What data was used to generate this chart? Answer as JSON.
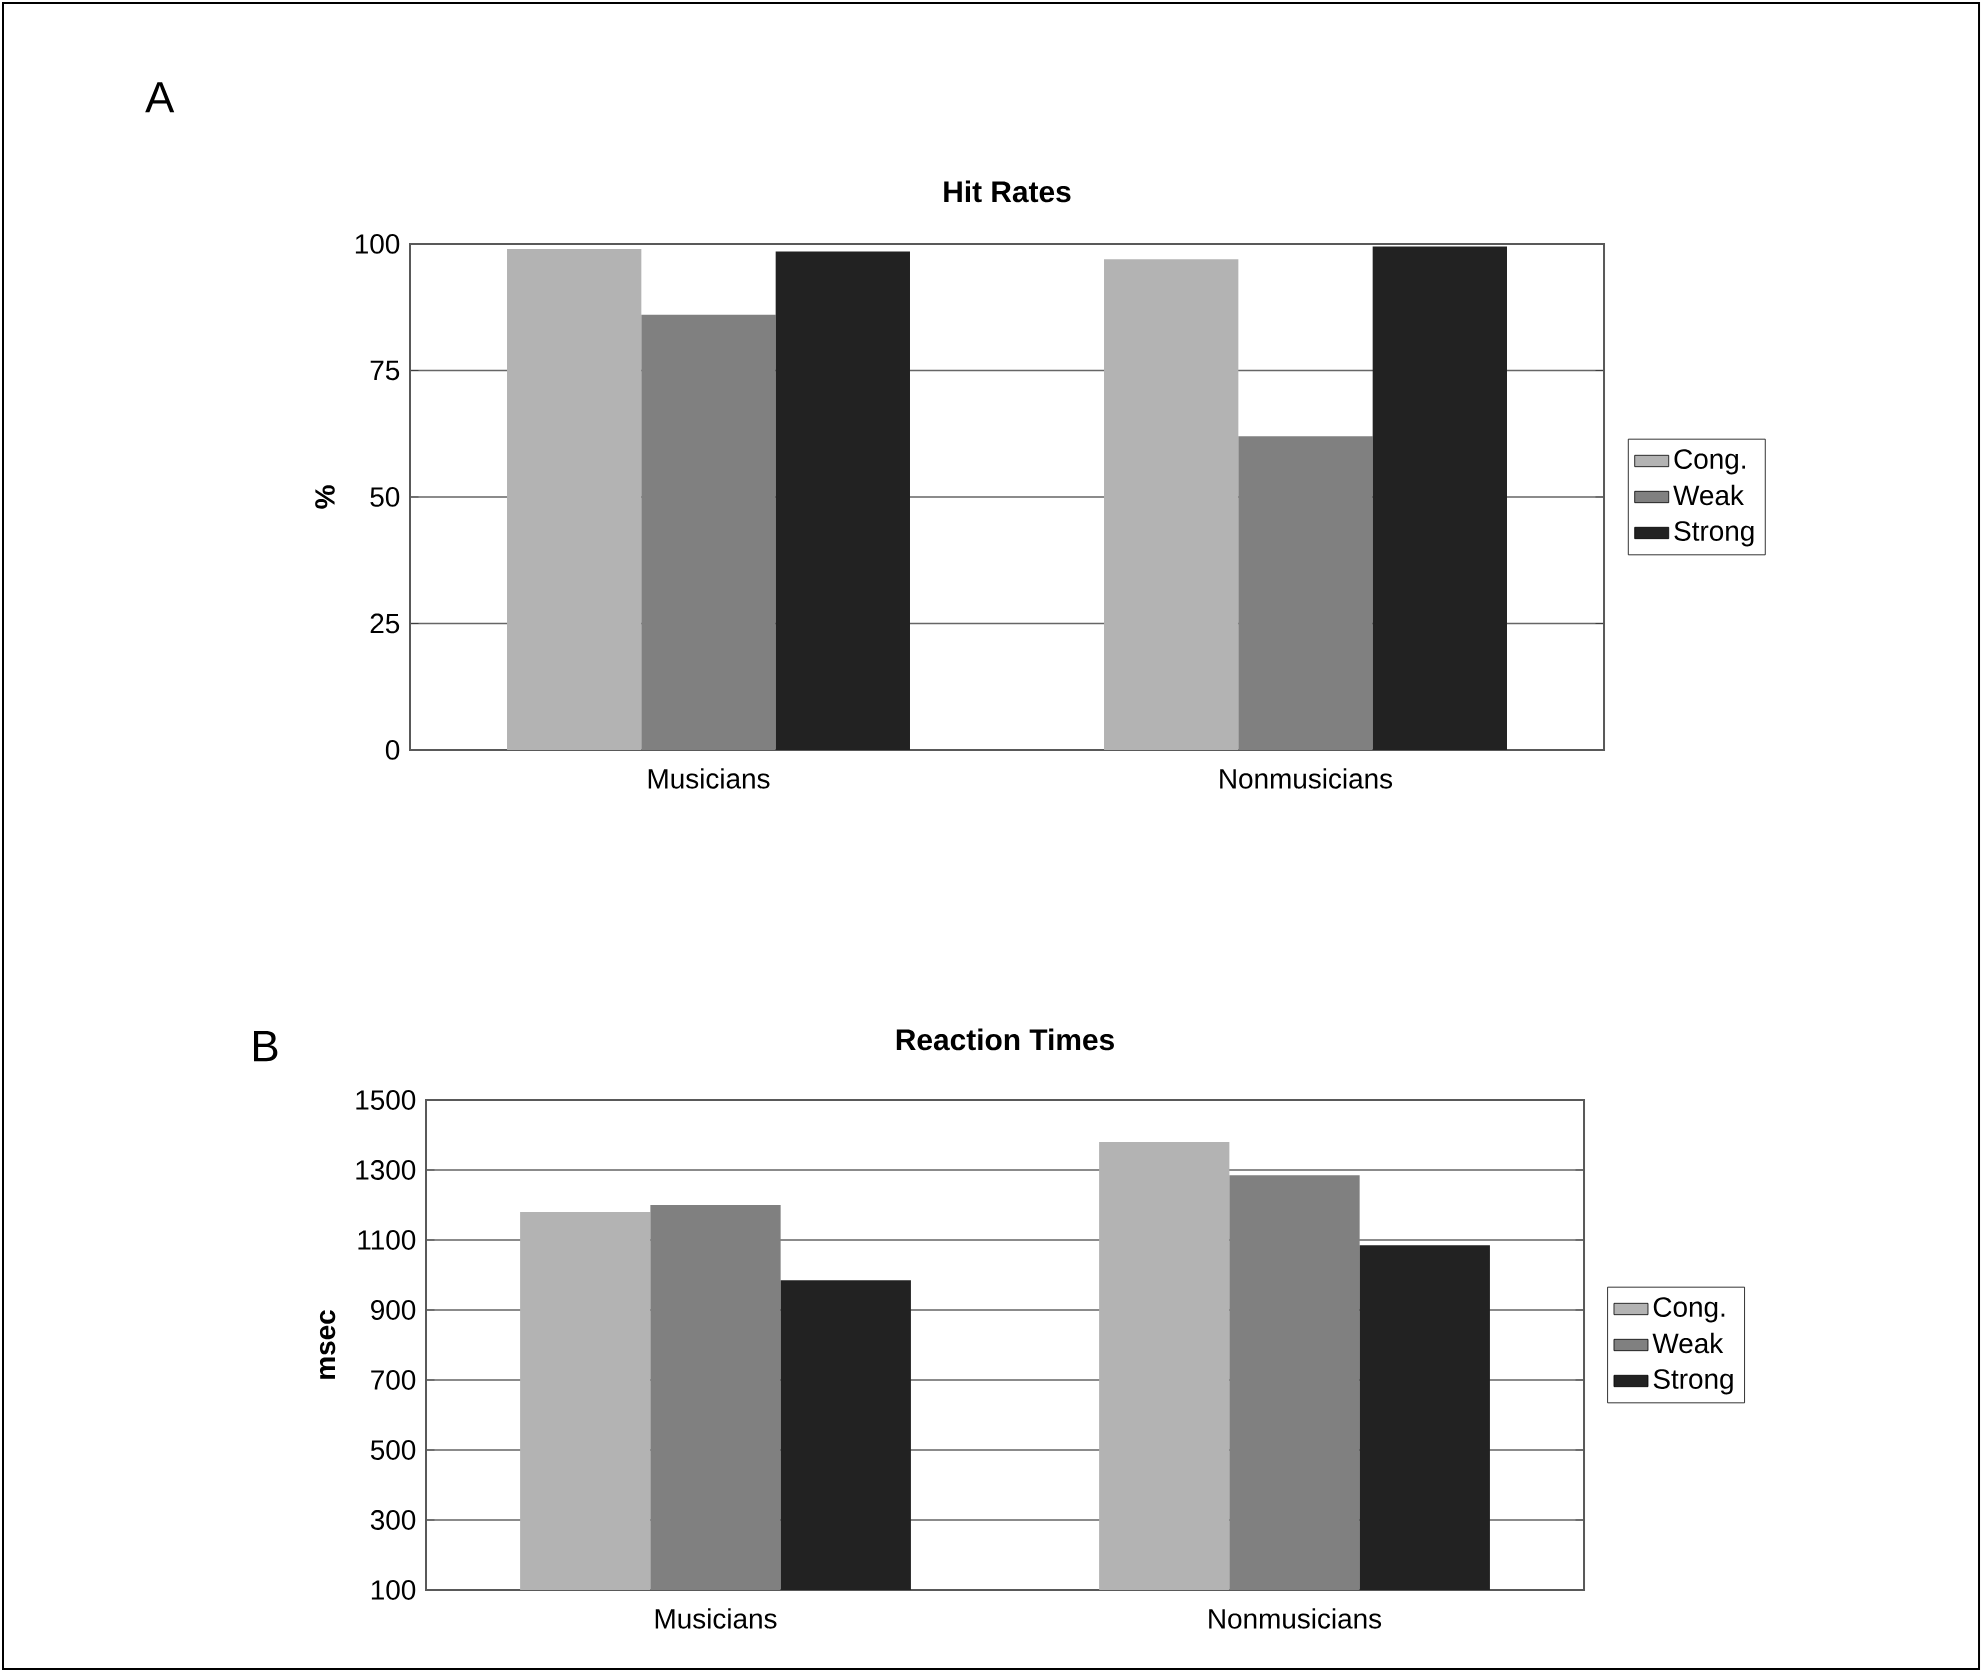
{
  "chart_data": [
    {
      "type": "bar",
      "title": "Hit Rates",
      "ylabel": "%",
      "categories": [
        "Musicians",
        "Nonmusicians"
      ],
      "series": [
        {
          "name": "Cong.",
          "color": "#b3b3b3",
          "values": [
            99,
            97
          ]
        },
        {
          "name": "Weak",
          "color": "#808080",
          "values": [
            86,
            62
          ]
        },
        {
          "name": "Strong",
          "color": "#222222",
          "values": [
            98.5,
            99.5
          ]
        }
      ],
      "ylim": [
        0,
        100
      ],
      "yticks": [
        0,
        25,
        50,
        75,
        100
      ],
      "grid": "y",
      "legend": "right",
      "annotations": [
        "A"
      ]
    },
    {
      "type": "bar",
      "title": "Reaction Times",
      "ylabel": "msec",
      "categories": [
        "Musicians",
        "Nonmusicians"
      ],
      "series": [
        {
          "name": "Cong.",
          "color": "#b3b3b3",
          "values": [
            1180,
            1380
          ]
        },
        {
          "name": "Weak",
          "color": "#808080",
          "values": [
            1200,
            1285
          ]
        },
        {
          "name": "Strong",
          "color": "#222222",
          "values": [
            985,
            1085
          ]
        }
      ],
      "ylim": [
        100,
        1500
      ],
      "yticks": [
        100,
        300,
        500,
        700,
        900,
        1100,
        1300,
        1500
      ],
      "grid": "y",
      "legend": "right",
      "annotations": [
        "B"
      ]
    }
  ]
}
